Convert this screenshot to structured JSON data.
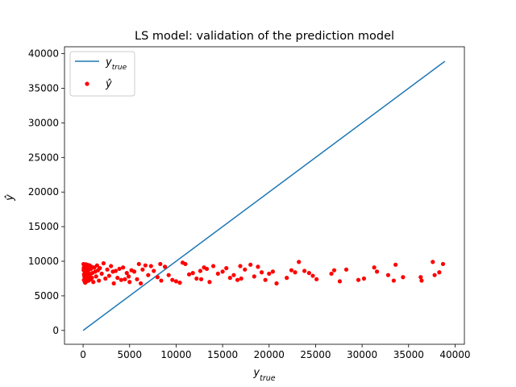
{
  "chart_data": {
    "type": "scatter",
    "title": "LS model: validation of the prediction model",
    "xlabel_base": "y",
    "xlabel_sub": "true",
    "ylabel": "ŷ",
    "xlim": [
      -2000,
      41000
    ],
    "ylim": [
      -2000,
      41000
    ],
    "xticks": [
      0,
      5000,
      10000,
      15000,
      20000,
      25000,
      30000,
      35000,
      40000
    ],
    "yticks": [
      0,
      5000,
      10000,
      15000,
      20000,
      25000,
      30000,
      35000,
      40000
    ],
    "grid": false,
    "legend": {
      "placement": "top-left",
      "entries": [
        {
          "label_base": "y",
          "label_sub": "true",
          "marker": "line",
          "color": "#1f77b4"
        },
        {
          "label": "ŷ",
          "marker": "dot",
          "color": "#ff0000"
        }
      ]
    },
    "series": [
      {
        "type": "line",
        "color": "#1f77b4",
        "x": [
          0,
          38900
        ],
        "y": [
          0,
          38900
        ]
      },
      {
        "type": "scatter",
        "color": "#ff0000",
        "points": [
          [
            80,
            9500
          ],
          [
            120,
            9200
          ],
          [
            160,
            8900
          ],
          [
            60,
            8700
          ],
          [
            200,
            8400
          ],
          [
            100,
            8100
          ],
          [
            140,
            7800
          ],
          [
            220,
            7500
          ],
          [
            90,
            7300
          ],
          [
            180,
            7000
          ],
          [
            260,
            9400
          ],
          [
            300,
            9100
          ],
          [
            340,
            8800
          ],
          [
            280,
            8500
          ],
          [
            320,
            8200
          ],
          [
            360,
            7900
          ],
          [
            240,
            7600
          ],
          [
            400,
            7300
          ],
          [
            380,
            7100
          ],
          [
            420,
            8600
          ],
          [
            450,
            9300
          ],
          [
            500,
            8900
          ],
          [
            480,
            8300
          ],
          [
            550,
            7700
          ],
          [
            600,
            7200
          ],
          [
            650,
            8800
          ],
          [
            700,
            9400
          ],
          [
            750,
            8100
          ],
          [
            800,
            7400
          ],
          [
            850,
            8900
          ],
          [
            900,
            9200
          ],
          [
            950,
            7600
          ],
          [
            1000,
            8300
          ],
          [
            1100,
            7000
          ],
          [
            1200,
            9100
          ],
          [
            1300,
            8500
          ],
          [
            1400,
            7800
          ],
          [
            1500,
            9400
          ],
          [
            1600,
            8700
          ],
          [
            1700,
            7200
          ],
          [
            50,
            9600
          ],
          [
            70,
            9000
          ],
          [
            130,
            8000
          ],
          [
            170,
            7400
          ],
          [
            230,
            6900
          ],
          [
            310,
            9550
          ],
          [
            390,
            8050
          ],
          [
            470,
            7650
          ],
          [
            530,
            9450
          ],
          [
            610,
            8250
          ],
          [
            1800,
            9000
          ],
          [
            2000,
            8200
          ],
          [
            2200,
            9700
          ],
          [
            2400,
            7500
          ],
          [
            2600,
            8800
          ],
          [
            2800,
            7900
          ],
          [
            3000,
            9300
          ],
          [
            3200,
            8500
          ],
          [
            3300,
            6800
          ],
          [
            3500,
            8600
          ],
          [
            3700,
            7600
          ],
          [
            3900,
            8900
          ],
          [
            4100,
            7300
          ],
          [
            4300,
            9100
          ],
          [
            4500,
            7400
          ],
          [
            4700,
            8300
          ],
          [
            4900,
            7800
          ],
          [
            5200,
            8700
          ],
          [
            5500,
            8500
          ],
          [
            5800,
            7400
          ],
          [
            6000,
            9600
          ],
          [
            6200,
            6800
          ],
          [
            6400,
            8800
          ],
          [
            6700,
            9400
          ],
          [
            7000,
            8000
          ],
          [
            7300,
            9300
          ],
          [
            7600,
            8600
          ],
          [
            8000,
            7700
          ],
          [
            8400,
            7200
          ],
          [
            8800,
            9200
          ],
          [
            9200,
            8000
          ],
          [
            9600,
            7300
          ],
          [
            10000,
            7100
          ],
          [
            10400,
            6900
          ],
          [
            10700,
            9800
          ],
          [
            11000,
            9600
          ],
          [
            11400,
            8100
          ],
          [
            11800,
            8300
          ],
          [
            12200,
            7500
          ],
          [
            12600,
            8600
          ],
          [
            13000,
            9100
          ],
          [
            13300,
            8900
          ],
          [
            13600,
            7000
          ],
          [
            14000,
            9300
          ],
          [
            14500,
            8200
          ],
          [
            15000,
            8500
          ],
          [
            15400,
            9000
          ],
          [
            15800,
            7600
          ],
          [
            16200,
            8000
          ],
          [
            16600,
            7300
          ],
          [
            17000,
            7500
          ],
          [
            17400,
            8800
          ],
          [
            18000,
            9500
          ],
          [
            18400,
            7800
          ],
          [
            18800,
            9200
          ],
          [
            19200,
            8400
          ],
          [
            19600,
            7300
          ],
          [
            20000,
            8200
          ],
          [
            20400,
            8500
          ],
          [
            20800,
            6800
          ],
          [
            22400,
            8700
          ],
          [
            22800,
            8400
          ],
          [
            23200,
            9900
          ],
          [
            23800,
            8600
          ],
          [
            24300,
            8300
          ],
          [
            24700,
            7900
          ],
          [
            25100,
            7400
          ],
          [
            26700,
            8200
          ],
          [
            27000,
            8700
          ],
          [
            27600,
            7100
          ],
          [
            28300,
            8800
          ],
          [
            29600,
            7300
          ],
          [
            30200,
            7500
          ],
          [
            31300,
            9100
          ],
          [
            31600,
            8500
          ],
          [
            32800,
            8000
          ],
          [
            33400,
            7200
          ],
          [
            33600,
            9500
          ],
          [
            34400,
            7700
          ],
          [
            36400,
            7200
          ],
          [
            36300,
            7700
          ],
          [
            37600,
            9900
          ],
          [
            38300,
            8400
          ],
          [
            38700,
            9600
          ],
          [
            37800,
            8000
          ],
          [
            21900,
            7600
          ],
          [
            16900,
            9300
          ],
          [
            12700,
            7400
          ],
          [
            8300,
            9600
          ],
          [
            5000,
            7000
          ]
        ]
      }
    ]
  }
}
